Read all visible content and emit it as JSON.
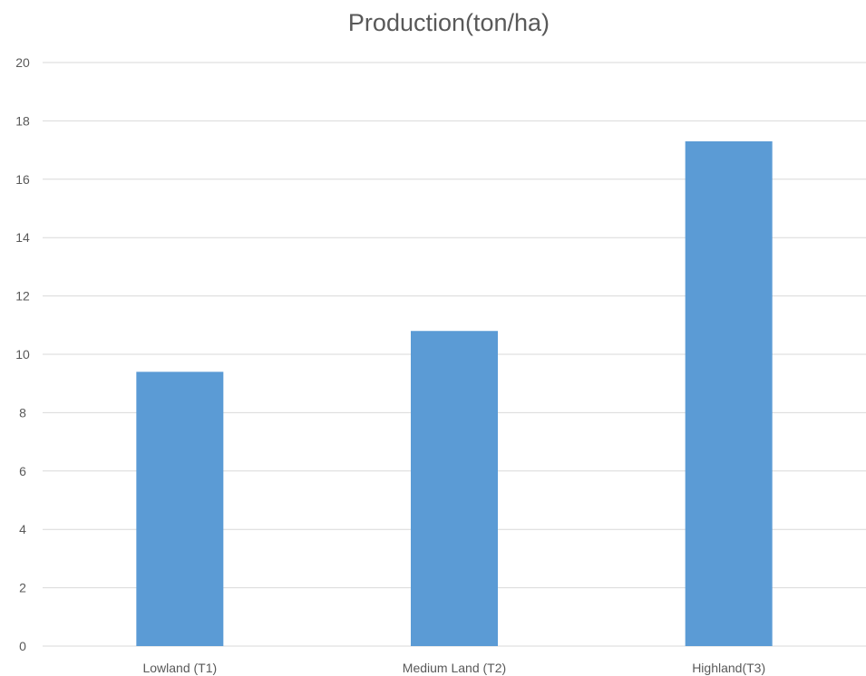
{
  "chart_data": {
    "type": "bar",
    "title": "Production(ton/ha)",
    "xlabel": "",
    "ylabel": "",
    "categories": [
      "Lowland (T1)",
      "Medium Land (T2)",
      "Highland(T3)"
    ],
    "values": [
      9.4,
      10.8,
      17.3
    ],
    "ylim": [
      0,
      20
    ],
    "yticks": [
      0,
      2,
      4,
      6,
      8,
      10,
      12,
      14,
      16,
      18,
      20
    ],
    "grid": true,
    "legend": "none",
    "colors": {
      "bar": "#5B9BD5",
      "grid": "#D9D9D9",
      "axis_text": "#595959",
      "title": "#595959"
    }
  }
}
